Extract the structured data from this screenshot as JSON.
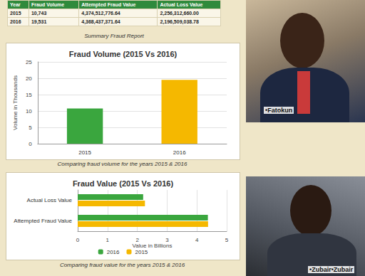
{
  "table": {
    "columns": [
      "Year",
      "Fraud Volume",
      "Attempted Fraud Value",
      "Actual Loss Value"
    ],
    "rows": [
      [
        "2015",
        "10,743",
        "4,374,512,776.64",
        "2,256,312,660.00"
      ],
      [
        "2016",
        "19,531",
        "4,368,437,371.64",
        "2,196,509,038.78"
      ]
    ],
    "caption": "Summary Fraud Report"
  },
  "chart_data": [
    {
      "type": "bar",
      "title": "Fraud Volume (2015 Vs 2016)",
      "subtitle": "Comparing fraud volume for the years 2015 & 2016",
      "categories": [
        "2015",
        "2016"
      ],
      "values": [
        10.743,
        19.531
      ],
      "colors": [
        "#3aa63e",
        "#f5b800"
      ],
      "ylabel": "Volume in Thousands",
      "ylim": [
        0,
        25
      ],
      "yticks": [
        0,
        5,
        10,
        15,
        20,
        25
      ],
      "grid": true
    },
    {
      "type": "bar",
      "orientation": "horizontal",
      "title": "Fraud Value (2015 Vs 2016)",
      "subtitle": "Comparing fraud value for the years 2015 & 2016",
      "categories": [
        "Actual Loss Value",
        "Attempted Fraud Value"
      ],
      "series": [
        {
          "name": "2016",
          "color": "#3aa63e",
          "values": [
            2.196509038,
            4.368437372
          ]
        },
        {
          "name": "2015",
          "color": "#f5b800",
          "values": [
            2.25631266,
            4.374512777
          ]
        }
      ],
      "xlabel": "Value in Billions",
      "xlim": [
        0,
        5
      ],
      "xticks": [
        0,
        1,
        2,
        3,
        4,
        5
      ],
      "grid": true,
      "legend": "bottom"
    }
  ],
  "photo_captions": [
    "•Fatokun",
    "•Zubair•Zubair"
  ]
}
